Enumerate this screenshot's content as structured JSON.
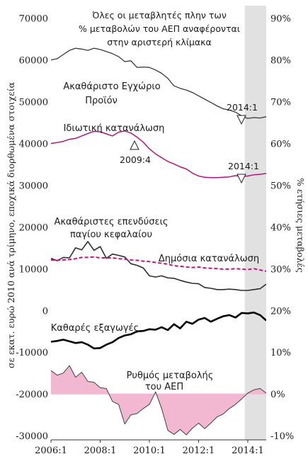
{
  "chart_data": {
    "type": "line",
    "title": "Όλες οι μεταβλητές πλην των % μεταβολών του ΑΕΠ αναφέρονται στην αριστερή κλίμακα",
    "title_lines": [
      "Όλες οι μεταβλητές πλην των",
      "% μεταβολών του ΑΕΠ αναφέρονται",
      "στην αριστερή κλίμακα"
    ],
    "ylabel_left": "σε εκατ. ευρώ 2010 ανά τρίμηνο, εποχικά διορθωμένα στοιχεία",
    "ylabel_right": "% ετήσιες μεταβολές",
    "x_tick_labels": [
      "2006:1",
      "2008:1",
      "2010:1",
      "2012:1",
      "2014:1"
    ],
    "x_ticks": [
      2006,
      2008,
      2010,
      2012,
      2014
    ],
    "xlim": [
      2006,
      2014.75
    ],
    "y_left_ticks": [
      70000,
      60000,
      50000,
      40000,
      30000,
      20000,
      10000,
      0,
      -10000,
      -20000,
      -30000
    ],
    "y_left_tick_labels": [
      "70000",
      "60000",
      "50000",
      "40000",
      "30000",
      "20000",
      "10000",
      "0",
      "-10000",
      "-20000",
      "-30000"
    ],
    "y_right_ticks": [
      90,
      80,
      70,
      60,
      50,
      40,
      30,
      20,
      10,
      0,
      -10
    ],
    "y_right_tick_labels": [
      "90%",
      "80%",
      "70%",
      "60%",
      "50%",
      "40%",
      "30%",
      "20%",
      "10%",
      "0%",
      "-10%"
    ],
    "ylim_left": [
      -31000,
      73000
    ],
    "ylim_right": [
      -11,
      93
    ],
    "shaded_period": [
      2013.875,
      2014.75
    ],
    "grid": false,
    "annotations": [
      {
        "text": "2014:1",
        "x": 2014,
        "y": 46000
      },
      {
        "text": "2009:4",
        "x": 2009.75,
        "y": 42500
      },
      {
        "text": "2014:1",
        "x": 2014,
        "y": 32000
      }
    ],
    "series": [
      {
        "name": "Ακαθάριστο Εγχώριο Προϊόν",
        "label_lines": [
          "Ακαθάριστο Εγχώριο",
          "Προϊόν"
        ],
        "axis": "left",
        "color": "#3a3a3a",
        "style": "solid",
        "x_start": 2006,
        "values": [
          60000,
          60300,
          61300,
          62300,
          62800,
          62600,
          62300,
          62800,
          62500,
          62000,
          61500,
          60800,
          59600,
          59800,
          58200,
          58300,
          58200,
          57600,
          56800,
          55600,
          53800,
          53200,
          52800,
          52200,
          51400,
          50600,
          49800,
          49000,
          48300,
          48000,
          47500,
          46600,
          46000,
          46200,
          46100,
          46400
        ]
      },
      {
        "name": "Ιδιωτική κατανάλωση",
        "label_lines": [
          "Ιδιωτική κατανάλωση"
        ],
        "axis": "left",
        "color": "#b0157d",
        "style": "solid",
        "x_start": 2006,
        "values": [
          40000,
          40200,
          40500,
          41000,
          41200,
          41800,
          42400,
          42900,
          42800,
          42300,
          41800,
          42700,
          43000,
          42500,
          41500,
          40300,
          38700,
          37500,
          36600,
          35700,
          35100,
          34400,
          33900,
          32900,
          32200,
          31900,
          31800,
          31800,
          31900,
          32000,
          32300,
          32100,
          32200,
          32500,
          32600,
          32800
        ]
      },
      {
        "name": "Ακαθάριστες επενδύσεις παγίου κεφαλαίου",
        "label_lines": [
          "Ακαθάριστες επενδύσεις",
          "παγίου κεφαλαίου"
        ],
        "axis": "left",
        "color": "#2e2e2e",
        "style": "solid",
        "x_start": 2006,
        "values": [
          12500,
          11900,
          12700,
          12600,
          15000,
          14500,
          16500,
          14400,
          15300,
          12500,
          13500,
          13200,
          12800,
          11200,
          10800,
          10200,
          8300,
          8000,
          8300,
          7800,
          7700,
          7200,
          6800,
          6500,
          6400,
          5500,
          5300,
          5000,
          5000,
          5100,
          5000,
          4800,
          4800,
          5000,
          5200,
          6300
        ]
      },
      {
        "name": "Δημόσια κατανάλωση",
        "label_lines": [
          "Δημόσια κατανάλωση"
        ],
        "axis": "left",
        "color": "#c8117d",
        "style": "dashed",
        "x_start": 2006,
        "values": [
          12100,
          12000,
          12100,
          12200,
          12400,
          12700,
          12700,
          12800,
          12600,
          12600,
          12600,
          12400,
          12300,
          12100,
          12000,
          11800,
          11700,
          11500,
          11300,
          11100,
          10700,
          10600,
          10400,
          10300,
          10400,
          10200,
          10100,
          10000,
          9900,
          9900,
          10000,
          9900,
          9800,
          10000,
          9700,
          9400
        ]
      },
      {
        "name": "Καθαρές εξαγωγές",
        "label_lines": [
          "Καθαρές εξαγωγές"
        ],
        "axis": "left",
        "color": "#000000",
        "style": "solid",
        "x_start": 2006,
        "values": [
          -7500,
          -7300,
          -7000,
          -7400,
          -7800,
          -7600,
          -8200,
          -9100,
          -9000,
          -8200,
          -7600,
          -6600,
          -6000,
          -5700,
          -5000,
          -4900,
          -4500,
          -4600,
          -4000,
          -4700,
          -3300,
          -4300,
          -2700,
          -3200,
          -2200,
          -1800,
          -2700,
          -2000,
          -1400,
          -1100,
          -1700,
          -600,
          -700,
          -500,
          -1100,
          -2400
        ]
      },
      {
        "name": "Ρυθμός μεταβολής του ΑΕΠ",
        "label_lines": [
          "Ρυθμός μεταβολής",
          "του ΑΕΠ"
        ],
        "axis": "right",
        "color": "#404040",
        "fill": "#f2b8d2",
        "style": "area",
        "x_start": 2006,
        "values": [
          5.6,
          4.5,
          5.0,
          6.8,
          4.0,
          5.2,
          3.0,
          2.8,
          1.5,
          1.3,
          -1.8,
          -2.5,
          -7.2,
          -5.0,
          -4.7,
          -3.5,
          -2.5,
          0.5,
          -3.5,
          -8.7,
          -9.7,
          -8.5,
          -9.8,
          -8.2,
          -7.0,
          -8.3,
          -7.0,
          -5.5,
          -4.8,
          -3.5,
          -2.5,
          -1.2,
          0.2,
          1.0,
          1.3,
          0.2
        ]
      }
    ]
  }
}
